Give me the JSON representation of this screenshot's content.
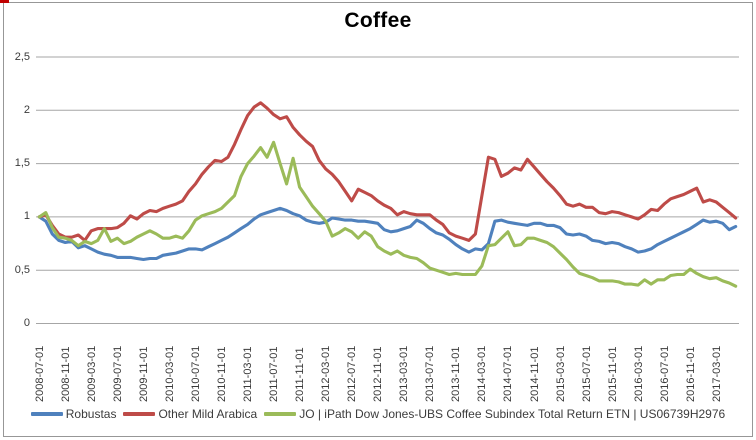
{
  "window": {
    "corner_mark_color": "#c00000",
    "border_color": "#979797"
  },
  "chart_data": {
    "type": "line",
    "title": "Coffee",
    "grid": true,
    "legend_position": "bottom",
    "background": "#ffffff",
    "gridline_color": "#a6a6a6",
    "y_axis": {
      "min": 0,
      "max": 2.5,
      "step": 0.5,
      "tick_labels": [
        "0",
        "0,5",
        "1",
        "1,5",
        "2",
        "2,5"
      ]
    },
    "x_axis": {
      "start_month": "2008-07",
      "months_per_tick": 4,
      "tick_labels": [
        "2008-07-01",
        "2008-11-01",
        "2009-03-01",
        "2009-07-01",
        "2009-11-01",
        "2010-03-01",
        "2010-07-01",
        "2010-11-01",
        "2011-03-01",
        "2011-07-01",
        "2011-11-01",
        "2012-03-01",
        "2012-07-01",
        "2012-11-01",
        "2013-03-01",
        "2013-07-01",
        "2013-11-01",
        "2014-03-01",
        "2014-07-01",
        "2014-11-01",
        "2015-03-01",
        "2015-07-01",
        "2015-11-01",
        "2016-03-01",
        "2016-07-01",
        "2016-11-01",
        "2017-03-01"
      ]
    },
    "series": [
      {
        "name": "Robustas",
        "color": "#4f81bd",
        "values": [
          1.0,
          0.96,
          0.84,
          0.78,
          0.76,
          0.77,
          0.71,
          0.73,
          0.7,
          0.67,
          0.65,
          0.64,
          0.62,
          0.62,
          0.62,
          0.61,
          0.6,
          0.61,
          0.61,
          0.64,
          0.65,
          0.66,
          0.68,
          0.7,
          0.7,
          0.69,
          0.72,
          0.75,
          0.78,
          0.81,
          0.85,
          0.89,
          0.93,
          0.98,
          1.02,
          1.04,
          1.06,
          1.08,
          1.06,
          1.03,
          1.01,
          0.97,
          0.95,
          0.94,
          0.95,
          0.99,
          0.98,
          0.97,
          0.97,
          0.96,
          0.96,
          0.95,
          0.94,
          0.88,
          0.86,
          0.87,
          0.89,
          0.91,
          0.97,
          0.94,
          0.89,
          0.85,
          0.83,
          0.79,
          0.74,
          0.7,
          0.67,
          0.7,
          0.69,
          0.75,
          0.96,
          0.97,
          0.95,
          0.94,
          0.93,
          0.92,
          0.94,
          0.94,
          0.92,
          0.92,
          0.9,
          0.84,
          0.83,
          0.84,
          0.82,
          0.78,
          0.77,
          0.75,
          0.76,
          0.75,
          0.72,
          0.7,
          0.67,
          0.68,
          0.7,
          0.74,
          0.77,
          0.8,
          0.83,
          0.86,
          0.89,
          0.93,
          0.97,
          0.95,
          0.96,
          0.94,
          0.88,
          0.91
        ]
      },
      {
        "name": "Other Mild Arabica",
        "color": "#be4b48",
        "values": [
          1.0,
          1.02,
          0.92,
          0.84,
          0.81,
          0.81,
          0.83,
          0.78,
          0.87,
          0.89,
          0.89,
          0.89,
          0.9,
          0.94,
          1.01,
          0.98,
          1.03,
          1.06,
          1.05,
          1.08,
          1.1,
          1.12,
          1.15,
          1.24,
          1.31,
          1.4,
          1.47,
          1.53,
          1.52,
          1.56,
          1.68,
          1.82,
          1.95,
          2.03,
          2.07,
          2.02,
          1.96,
          1.92,
          1.94,
          1.84,
          1.77,
          1.71,
          1.66,
          1.53,
          1.45,
          1.4,
          1.33,
          1.24,
          1.15,
          1.26,
          1.23,
          1.2,
          1.15,
          1.11,
          1.08,
          1.02,
          1.05,
          1.03,
          1.02,
          1.02,
          1.02,
          0.97,
          0.93,
          0.85,
          0.82,
          0.8,
          0.78,
          0.84,
          1.2,
          1.56,
          1.54,
          1.38,
          1.41,
          1.46,
          1.44,
          1.54,
          1.47,
          1.4,
          1.33,
          1.27,
          1.2,
          1.12,
          1.1,
          1.12,
          1.09,
          1.09,
          1.04,
          1.03,
          1.05,
          1.04,
          1.02,
          1.0,
          0.98,
          1.02,
          1.07,
          1.06,
          1.12,
          1.17,
          1.19,
          1.21,
          1.24,
          1.27,
          1.14,
          1.16,
          1.14,
          1.09,
          1.04,
          0.99
        ]
      },
      {
        "name": "JO | iPath Dow Jones-UBS Coffee Subindex Total Return ETN | US06739H2976",
        "color": "#9bbb59",
        "values": [
          1.0,
          1.04,
          0.9,
          0.81,
          0.8,
          0.78,
          0.73,
          0.77,
          0.75,
          0.78,
          0.89,
          0.77,
          0.8,
          0.75,
          0.77,
          0.81,
          0.84,
          0.87,
          0.84,
          0.8,
          0.8,
          0.82,
          0.8,
          0.87,
          0.97,
          1.01,
          1.03,
          1.05,
          1.08,
          1.14,
          1.2,
          1.38,
          1.5,
          1.57,
          1.65,
          1.56,
          1.7,
          1.5,
          1.31,
          1.55,
          1.28,
          1.19,
          1.1,
          1.03,
          0.96,
          0.82,
          0.85,
          0.89,
          0.86,
          0.8,
          0.86,
          0.82,
          0.72,
          0.68,
          0.65,
          0.68,
          0.64,
          0.62,
          0.61,
          0.57,
          0.52,
          0.5,
          0.48,
          0.46,
          0.47,
          0.46,
          0.46,
          0.46,
          0.54,
          0.73,
          0.74,
          0.8,
          0.86,
          0.73,
          0.74,
          0.8,
          0.8,
          0.78,
          0.76,
          0.72,
          0.66,
          0.6,
          0.53,
          0.47,
          0.45,
          0.43,
          0.4,
          0.4,
          0.4,
          0.39,
          0.37,
          0.37,
          0.36,
          0.41,
          0.37,
          0.41,
          0.41,
          0.45,
          0.46,
          0.46,
          0.51,
          0.47,
          0.44,
          0.42,
          0.43,
          0.4,
          0.38,
          0.35
        ]
      }
    ]
  }
}
